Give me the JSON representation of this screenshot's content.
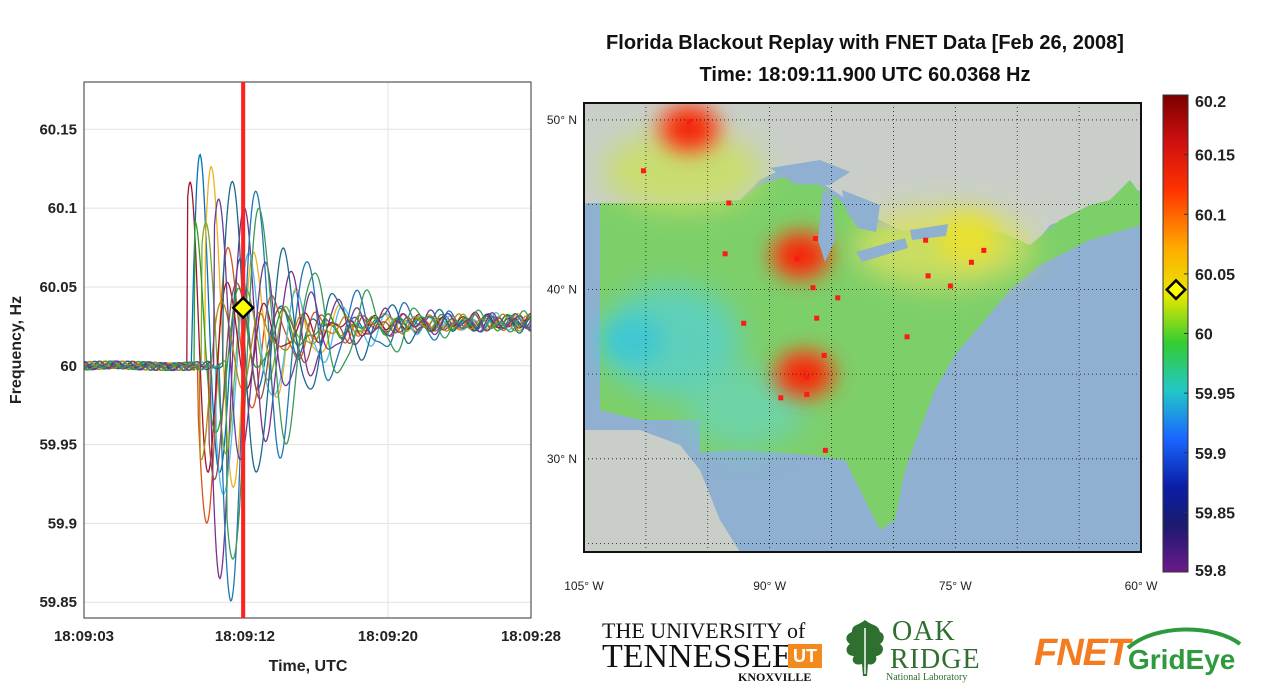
{
  "title": {
    "line1": "Florida Blackout Replay with FNET Data [Feb 26, 2008]",
    "line2": "Time: 18:09:11.900 UTC   60.0368 Hz"
  },
  "colors": {
    "cursor_line": "#ff2020",
    "marker_fill": "#ffff00",
    "grid": "#e2e2e2",
    "ocean": "#8fb0d0",
    "land": "#d0d8d0"
  },
  "chart_data": [
    {
      "type": "line",
      "ylabel": "Frequency, Hz",
      "xlabel": "Time, UTC",
      "x_ticks": [
        "18:09:03",
        "18:09:12",
        "18:09:20",
        "18:09:28"
      ],
      "y_ticks": [
        "60.15",
        "60.1",
        "60.05",
        "60",
        "59.95",
        "59.9",
        "59.85"
      ],
      "xlim_seconds": [
        3,
        28
      ],
      "ylim": [
        59.84,
        60.18
      ],
      "grid": true,
      "cursor_time_seconds": 11.9,
      "cursor_value": 60.0368,
      "series_colors": [
        "#0072bd",
        "#d95319",
        "#edb120",
        "#7e2f8e",
        "#77ac30",
        "#4dbeee",
        "#a2142f",
        "#1f77b4",
        "#2ca02c",
        "#8c564b",
        "#1b6a8a",
        "#b8860b",
        "#6a3d9a",
        "#3a9a5a"
      ],
      "series": [
        {
          "onset": 9.0,
          "amp": 0.16,
          "decay": 2.4,
          "period": 2.2,
          "phase": 0.0
        },
        {
          "onset": 9.4,
          "amp": -0.12,
          "decay": 2.8,
          "period": 2.5,
          "phase": 0.3
        },
        {
          "onset": 9.8,
          "amp": 0.14,
          "decay": 3.0,
          "period": 2.4,
          "phase": 0.6
        },
        {
          "onset": 10.1,
          "amp": -0.16,
          "decay": 3.2,
          "period": 2.6,
          "phase": 0.2
        },
        {
          "onset": 9.6,
          "amp": 0.1,
          "decay": 2.6,
          "period": 2.3,
          "phase": 0.9
        },
        {
          "onset": 10.4,
          "amp": -0.1,
          "decay": 3.4,
          "period": 2.7,
          "phase": 0.4
        },
        {
          "onset": 8.8,
          "amp": 0.12,
          "decay": 2.2,
          "period": 2.1,
          "phase": 1.1
        },
        {
          "onset": 10.6,
          "amp": -0.18,
          "decay": 3.6,
          "period": 2.8,
          "phase": 0.1
        },
        {
          "onset": 9.2,
          "amp": 0.09,
          "decay": 2.5,
          "period": 2.4,
          "phase": 1.4
        },
        {
          "onset": 10.0,
          "amp": -0.08,
          "decay": 3.0,
          "period": 2.5,
          "phase": 0.7
        },
        {
          "onset": 10.8,
          "amp": 0.13,
          "decay": 3.8,
          "period": 2.9,
          "phase": 0.5
        },
        {
          "onset": 9.5,
          "amp": -0.06,
          "decay": 2.7,
          "period": 2.2,
          "phase": 1.2
        },
        {
          "onset": 10.3,
          "amp": 0.11,
          "decay": 3.3,
          "period": 2.6,
          "phase": 1.0
        },
        {
          "onset": 11.0,
          "amp": -0.14,
          "decay": 4.0,
          "period": 3.0,
          "phase": 0.8
        }
      ]
    },
    {
      "type": "heatmap",
      "lat_ticks": [
        "50° N",
        "40° N",
        "30° N"
      ],
      "lon_ticks": [
        "105° W",
        "90° W",
        "75° W",
        "60° W"
      ],
      "lat_values": [
        50,
        40,
        30
      ],
      "lon_values": [
        -105,
        -90,
        -75,
        -60
      ],
      "lon_range": [
        -105,
        -60
      ],
      "lat_range": [
        24.5,
        51
      ],
      "hotspots": [
        {
          "lon": -96.5,
          "lat": 49.5,
          "value": 60.12
        },
        {
          "lon": -87.5,
          "lat": 42,
          "value": 60.11
        },
        {
          "lon": -87.2,
          "lat": 35,
          "value": 60.11
        },
        {
          "lon": -74,
          "lat": 43,
          "value": 60.07
        },
        {
          "lon": -101,
          "lat": 37,
          "value": 59.98
        }
      ],
      "sensors": [
        {
          "lon": -96.5,
          "lat": 49.9
        },
        {
          "lon": -100.2,
          "lat": 47.0
        },
        {
          "lon": -93.3,
          "lat": 45.1
        },
        {
          "lon": -93.6,
          "lat": 42.1
        },
        {
          "lon": -87.8,
          "lat": 41.8
        },
        {
          "lon": -86.3,
          "lat": 43.0
        },
        {
          "lon": -86.5,
          "lat": 40.1
        },
        {
          "lon": -86.2,
          "lat": 38.3
        },
        {
          "lon": -84.5,
          "lat": 39.5
        },
        {
          "lon": -92.1,
          "lat": 38.0
        },
        {
          "lon": -85.6,
          "lat": 36.1
        },
        {
          "lon": -87.0,
          "lat": 34.8
        },
        {
          "lon": -89.1,
          "lat": 33.6
        },
        {
          "lon": -87.0,
          "lat": 33.8
        },
        {
          "lon": -85.5,
          "lat": 30.5
        },
        {
          "lon": -78.9,
          "lat": 37.2
        },
        {
          "lon": -77.2,
          "lat": 40.8
        },
        {
          "lon": -77.4,
          "lat": 42.9
        },
        {
          "lon": -75.4,
          "lat": 40.2
        },
        {
          "lon": -73.7,
          "lat": 41.6
        },
        {
          "lon": -72.7,
          "lat": 42.3
        }
      ]
    },
    {
      "type": "colorbar",
      "ticks": [
        "60.2",
        "60.15",
        "60.1",
        "60.05",
        "60",
        "59.95",
        "59.9",
        "59.85",
        "59.8"
      ],
      "tick_values": [
        60.2,
        60.15,
        60.1,
        60.05,
        60,
        59.95,
        59.9,
        59.85,
        59.8
      ],
      "range": [
        59.8,
        60.2
      ],
      "current_value": 60.0368
    }
  ],
  "logos": {
    "ut": {
      "line1": "THE UNIVERSITY of",
      "line2": "TENNESSEE",
      "line3": "KNOXVILLE",
      "mark": "UT"
    },
    "ornl": {
      "line1": "OAK",
      "line2": "RIDGE",
      "line3": "National Laboratory"
    },
    "fnet": {
      "part1": "FNET",
      "part2": "GridEye"
    }
  }
}
